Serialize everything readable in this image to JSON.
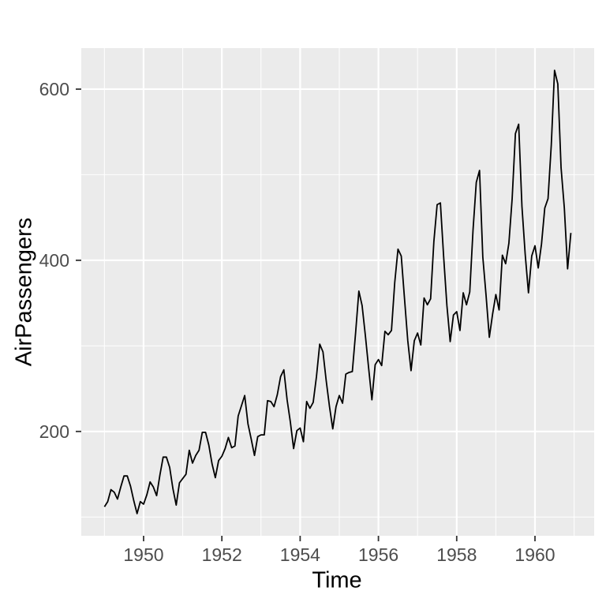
{
  "figure": {
    "background": "#FFFFFF"
  },
  "chart_data": {
    "type": "line",
    "title": "",
    "xlabel": "Time",
    "ylabel": "AirPassengers",
    "legend": "none",
    "grid": true,
    "xlim": [
      1948.408,
      1961.512
    ],
    "ylim": [
      78.1,
      647.9
    ],
    "x_ticks": {
      "values": [
        1950,
        1952,
        1954,
        1956,
        1958,
        1960
      ],
      "labels": [
        "1950",
        "1952",
        "1954",
        "1956",
        "1958",
        "1960"
      ]
    },
    "y_ticks": {
      "values": [
        200,
        400,
        600
      ],
      "labels": [
        "200",
        "400",
        "600"
      ]
    },
    "x_minor_gridlines": [
      1949,
      1951,
      1953,
      1955,
      1957,
      1959,
      1961
    ],
    "y_minor_gridlines": [
      100,
      300,
      500
    ],
    "series": [
      {
        "name": "AirPassengers",
        "start_year": 1949,
        "frequency": 12,
        "values": [
          112,
          118,
          132,
          129,
          121,
          135,
          148,
          148,
          136,
          119,
          104,
          118,
          115,
          126,
          141,
          135,
          125,
          149,
          170,
          170,
          158,
          133,
          114,
          140,
          145,
          150,
          178,
          163,
          172,
          178,
          199,
          199,
          184,
          162,
          146,
          166,
          171,
          180,
          193,
          181,
          183,
          218,
          230,
          242,
          209,
          191,
          172,
          194,
          196,
          196,
          236,
          235,
          229,
          243,
          264,
          272,
          237,
          211,
          180,
          201,
          204,
          188,
          235,
          227,
          234,
          264,
          302,
          293,
          259,
          229,
          203,
          229,
          242,
          233,
          267,
          269,
          270,
          315,
          364,
          347,
          312,
          274,
          237,
          278,
          284,
          277,
          317,
          313,
          318,
          374,
          413,
          405,
          355,
          306,
          271,
          306,
          315,
          301,
          356,
          348,
          355,
          422,
          465,
          467,
          404,
          347,
          305,
          336,
          340,
          318,
          362,
          348,
          363,
          435,
          491,
          505,
          404,
          359,
          310,
          337,
          360,
          342,
          406,
          396,
          420,
          472,
          548,
          559,
          463,
          407,
          362,
          405,
          417,
          391,
          419,
          461,
          472,
          535,
          622,
          606,
          508,
          461,
          390,
          432
        ]
      }
    ],
    "colors": {
      "line": "#000000",
      "panel_background": "#EBEBEB",
      "grid_major": "#FFFFFF",
      "grid_minor": "#FFFFFF",
      "tick_marks": "#333333",
      "tick_labels": "#4D4D4D",
      "axis_titles": "#000000"
    }
  }
}
